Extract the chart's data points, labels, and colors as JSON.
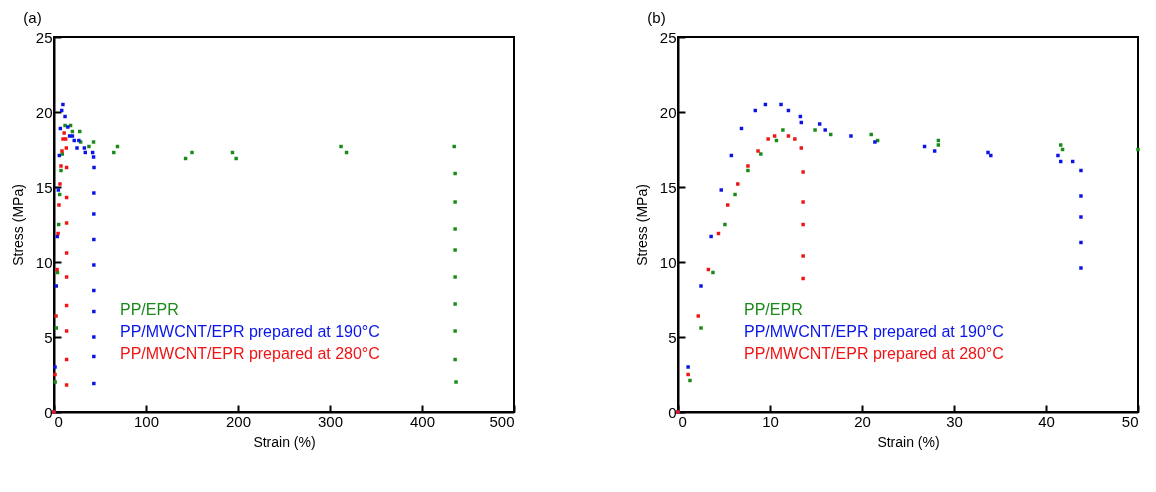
{
  "chart_data": [
    {
      "type": "scatter",
      "title": "(a)",
      "xlabel": "Strain (%)",
      "ylabel": "Stress (MPa)",
      "xlim": [
        0,
        500
      ],
      "ylim": [
        0,
        25
      ],
      "xticks": [
        0,
        100,
        200,
        300,
        400,
        500
      ],
      "yticks": [
        0,
        5,
        10,
        15,
        20,
        25
      ],
      "marker": "square",
      "legend": "bottom left",
      "series": [
        {
          "name": "PP/EPR",
          "color": "#1a8a1a",
          "x": [
            0,
            1.3,
            2.5,
            3.8,
            5.1,
            6.2,
            7.6,
            9,
            10.7,
            12,
            18,
            20,
            28,
            29,
            43,
            38,
            69,
            65,
            150,
            143,
            198,
            194,
            318,
            312,
            435,
            436,
            436,
            436,
            436,
            436,
            436,
            436,
            436,
            437
          ],
          "values": [
            0,
            2,
            5.6,
            9.3,
            12.5,
            14.5,
            16.1,
            17.2,
            null,
            19.1,
            19.1,
            18.7,
            18.7,
            18,
            18,
            17.7,
            17.7,
            17.3,
            17.3,
            16.9,
            16.9,
            17.3,
            17.3,
            17.7,
            17.7,
            15.9,
            14,
            12.2,
            10.8,
            9,
            7.2,
            5.4,
            3.5,
            2
          ]
        },
        {
          "name": "PP/MWCNT/EPR prepared at 190°C",
          "color": "#0a14e6",
          "x": [
            0,
            1.1,
            2.5,
            3.6,
            4.7,
            5.8,
            6.9,
            8.4,
            9.7,
            12,
            15,
            17,
            20,
            22,
            27,
            25,
            33,
            34,
            42,
            43,
            43.5,
            43.3,
            43.3,
            43.3,
            43.3,
            43.3,
            43.3,
            43.3,
            43.3,
            43.3
          ],
          "values": [
            0,
            3,
            8.4,
            11.7,
            14.8,
            17.1,
            18.9,
            20.1,
            20.5,
            19.7,
            19,
            18.4,
            18.4,
            18.1,
            18.1,
            17.6,
            17.6,
            17.3,
            17.3,
            17,
            16.3,
            14.6,
            13.2,
            11.5,
            9.8,
            8.1,
            6.7,
            5,
            3.7,
            1.9
          ]
        },
        {
          "name": "PP/MWCNT/EPR prepared at 280°C",
          "color": "#f01414",
          "x": [
            0,
            1.1,
            2.2,
            3.3,
            4.4,
            5.4,
            6.5,
            7.6,
            8.7,
            9.8,
            11,
            12.7,
            13.4,
            13.7,
            13.7,
            13.7,
            13.7,
            13.7,
            13.7,
            13.7,
            13.7,
            13.7
          ],
          "values": [
            0,
            2.5,
            6.4,
            9.5,
            11.9,
            13.8,
            15.2,
            16.4,
            17.4,
            18.2,
            18.6,
            18.2,
            17.6,
            16.3,
            14.3,
            12.6,
            10.6,
            9,
            7.1,
            5.4,
            3.5,
            1.8
          ]
        }
      ]
    },
    {
      "type": "scatter",
      "title": "(b)",
      "xlabel": "Strain (%)",
      "ylabel": "Stress (MPa)",
      "xlim": [
        0,
        50
      ],
      "ylim": [
        0,
        25
      ],
      "xticks": [
        0,
        10,
        20,
        30,
        40,
        50
      ],
      "yticks": [
        0,
        5,
        10,
        15,
        20,
        25
      ],
      "marker": "square",
      "legend": "bottom left",
      "series": [
        {
          "name": "PP/EPR",
          "color": "#1a8a1a",
          "x": [
            0,
            1.3,
            2.5,
            3.8,
            5.1,
            6.2,
            7.6,
            9,
            10.7,
            11.4,
            14.9,
            16.6,
            21,
            21.7,
            28.3,
            28.3,
            41.6,
            41.8,
            50
          ],
          "values": [
            0,
            2.1,
            5.6,
            9.3,
            12.5,
            14.5,
            16.1,
            17.2,
            18.1,
            18.8,
            18.8,
            18.5,
            18.5,
            18.1,
            18.1,
            17.8,
            17.8,
            17.5,
            17.5
          ]
        },
        {
          "name": "PP/MWCNT/EPR prepared at 190°C",
          "color": "#0a14e6",
          "x": [
            0,
            1.1,
            2.5,
            3.6,
            4.7,
            5.8,
            6.9,
            8.4,
            9.5,
            11.2,
            12,
            13.3,
            13.4,
            15.4,
            16,
            18.8,
            21.4,
            26.8,
            27.9,
            33.7,
            34,
            41.3,
            41.6,
            42.9,
            43.8,
            43.8,
            43.8,
            43.8,
            43.8
          ],
          "values": [
            0,
            3,
            8.4,
            11.7,
            14.8,
            17.1,
            18.9,
            20.1,
            20.5,
            20.5,
            20.1,
            19.7,
            19.3,
            19.2,
            18.8,
            18.4,
            18,
            17.7,
            17.4,
            17.3,
            17.1,
            17.1,
            16.7,
            16.7,
            16.1,
            14.4,
            13,
            11.3,
            9.6
          ]
        },
        {
          "name": "PP/MWCNT/EPR prepared at 280°C",
          "color": "#f01414",
          "x": [
            0,
            1.1,
            2.2,
            3.3,
            4.4,
            5.4,
            6.5,
            7.6,
            8.7,
            9.8,
            10.5,
            12,
            12.7,
            13.4,
            13.6,
            13.6,
            13.6,
            13.6,
            13.6
          ],
          "values": [
            0,
            2.5,
            6.4,
            9.5,
            11.9,
            13.8,
            15.2,
            16.4,
            17.4,
            18.2,
            18.4,
            18.4,
            18.2,
            17.6,
            16,
            14,
            12.5,
            10.4,
            8.9
          ]
        }
      ]
    }
  ]
}
